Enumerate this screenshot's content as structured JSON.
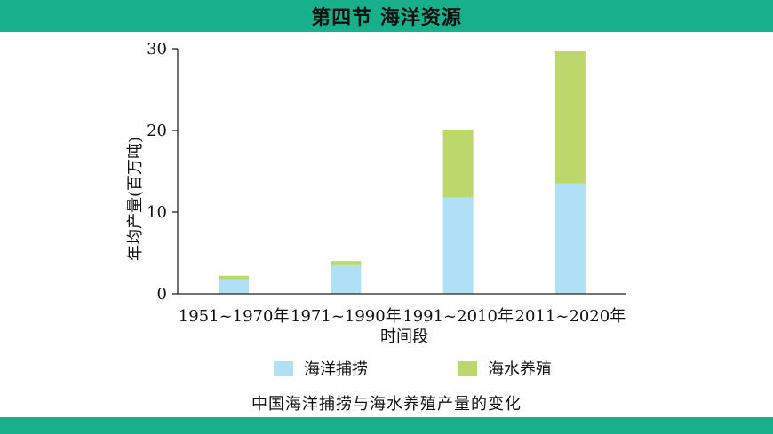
{
  "header": {
    "title": "第四节 海洋资源"
  },
  "caption": "中国海洋捕捞与海水养殖产量的变化",
  "colors": {
    "header_bg": "#17b08b",
    "capture": "#b0e0f5",
    "aquaculture": "#bcd86a",
    "axis": "#222222"
  },
  "chart_data": {
    "type": "bar",
    "stacked": true,
    "categories": [
      "1951~1970年",
      "1971~1990年",
      "1991~2010年",
      "2011~2020年"
    ],
    "series": [
      {
        "name": "海洋捕捞",
        "values": [
          1.8,
          3.5,
          11.8,
          13.5
        ]
      },
      {
        "name": "海水养殖",
        "values": [
          0.4,
          0.5,
          8.3,
          16.2
        ]
      }
    ],
    "xlabel": "时间段",
    "ylabel": "年均产量(百万吨)",
    "ylim": [
      0,
      30
    ],
    "yticks": [
      0,
      10,
      20,
      30
    ],
    "grid": false,
    "legend_position": "bottom"
  }
}
